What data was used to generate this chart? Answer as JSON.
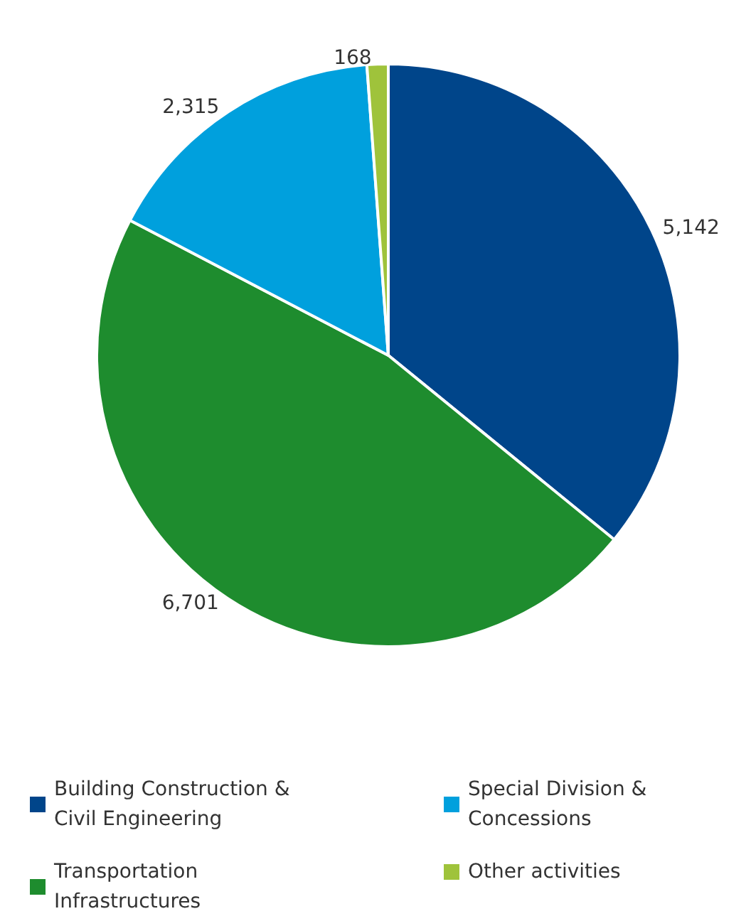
{
  "chart_data": {
    "type": "pie",
    "categories": [
      "Building Construction & Civil Engineering",
      "Transportation Infrastructures",
      "Special Division & Concessions",
      "Other activities"
    ],
    "values": [
      5142,
      6701,
      2315,
      168
    ],
    "colors": [
      "#00458a",
      "#1e8c2e",
      "#00a0dd",
      "#9fc33b"
    ],
    "value_labels": [
      "5,142",
      "6,701",
      "2,315",
      "168"
    ],
    "legend": "bottom"
  }
}
